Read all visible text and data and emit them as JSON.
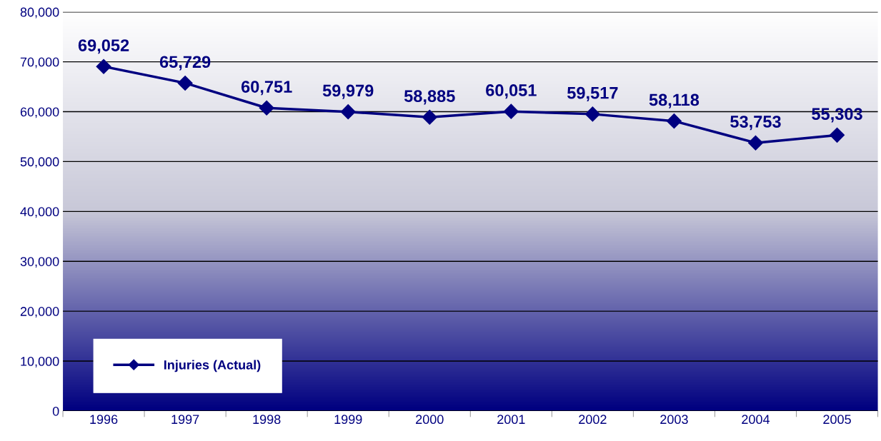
{
  "chart_data": {
    "type": "line",
    "categories": [
      "1996",
      "1997",
      "1998",
      "1999",
      "2000",
      "2001",
      "2002",
      "2003",
      "2004",
      "2005"
    ],
    "series": [
      {
        "name": "Injuries (Actual)",
        "color": "#000080",
        "values": [
          69052,
          65729,
          60751,
          59979,
          58885,
          60051,
          59517,
          58118,
          53753,
          55303
        ],
        "value_labels": [
          "69,052",
          "65,729",
          "60,751",
          "59,979",
          "58,885",
          "60,051",
          "59,517",
          "58,118",
          "53,753",
          "55,303"
        ]
      }
    ],
    "ylim": [
      0,
      80000
    ],
    "yticks": [
      {
        "value": 0,
        "label": "0"
      },
      {
        "value": 10000,
        "label": "10,000"
      },
      {
        "value": 20000,
        "label": "20,000"
      },
      {
        "value": 30000,
        "label": "30,000"
      },
      {
        "value": 40000,
        "label": "40,000"
      },
      {
        "value": 50000,
        "label": "50,000"
      },
      {
        "value": 60000,
        "label": "60,000"
      },
      {
        "value": 70000,
        "label": "70,000"
      },
      {
        "value": 80000,
        "label": "80,000"
      }
    ],
    "grid": "y",
    "legend": "bottom left",
    "marker": "diamond",
    "line_style": "solid"
  }
}
